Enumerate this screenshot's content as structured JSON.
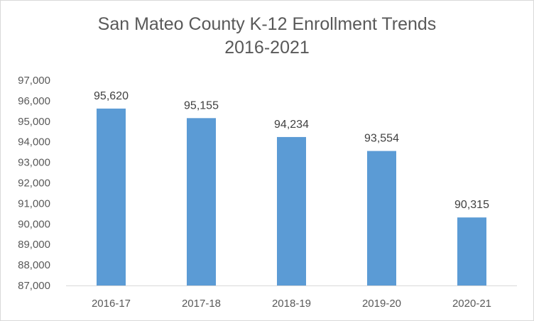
{
  "chart_data": {
    "type": "bar",
    "title": "San Mateo County K-12 Enrollment Trends",
    "subtitle": "2016-2021",
    "categories": [
      "2016-17",
      "2017-18",
      "2018-19",
      "2019-20",
      "2020-21"
    ],
    "values": [
      95620,
      95155,
      94234,
      93554,
      90315
    ],
    "value_labels": [
      "95,620",
      "95,155",
      "94,234",
      "93,554",
      "90,315"
    ],
    "y_ticks": [
      87000,
      88000,
      89000,
      90000,
      91000,
      92000,
      93000,
      94000,
      95000,
      96000,
      97000
    ],
    "y_tick_labels": [
      "87,000",
      "88,000",
      "89,000",
      "90,000",
      "91,000",
      "92,000",
      "93,000",
      "94,000",
      "95,000",
      "96,000",
      "97,000"
    ],
    "ylim": [
      87000,
      97000
    ],
    "xlabel": "",
    "ylabel": "",
    "grid": false,
    "legend": "none",
    "bar_color": "#5b9bd5"
  }
}
